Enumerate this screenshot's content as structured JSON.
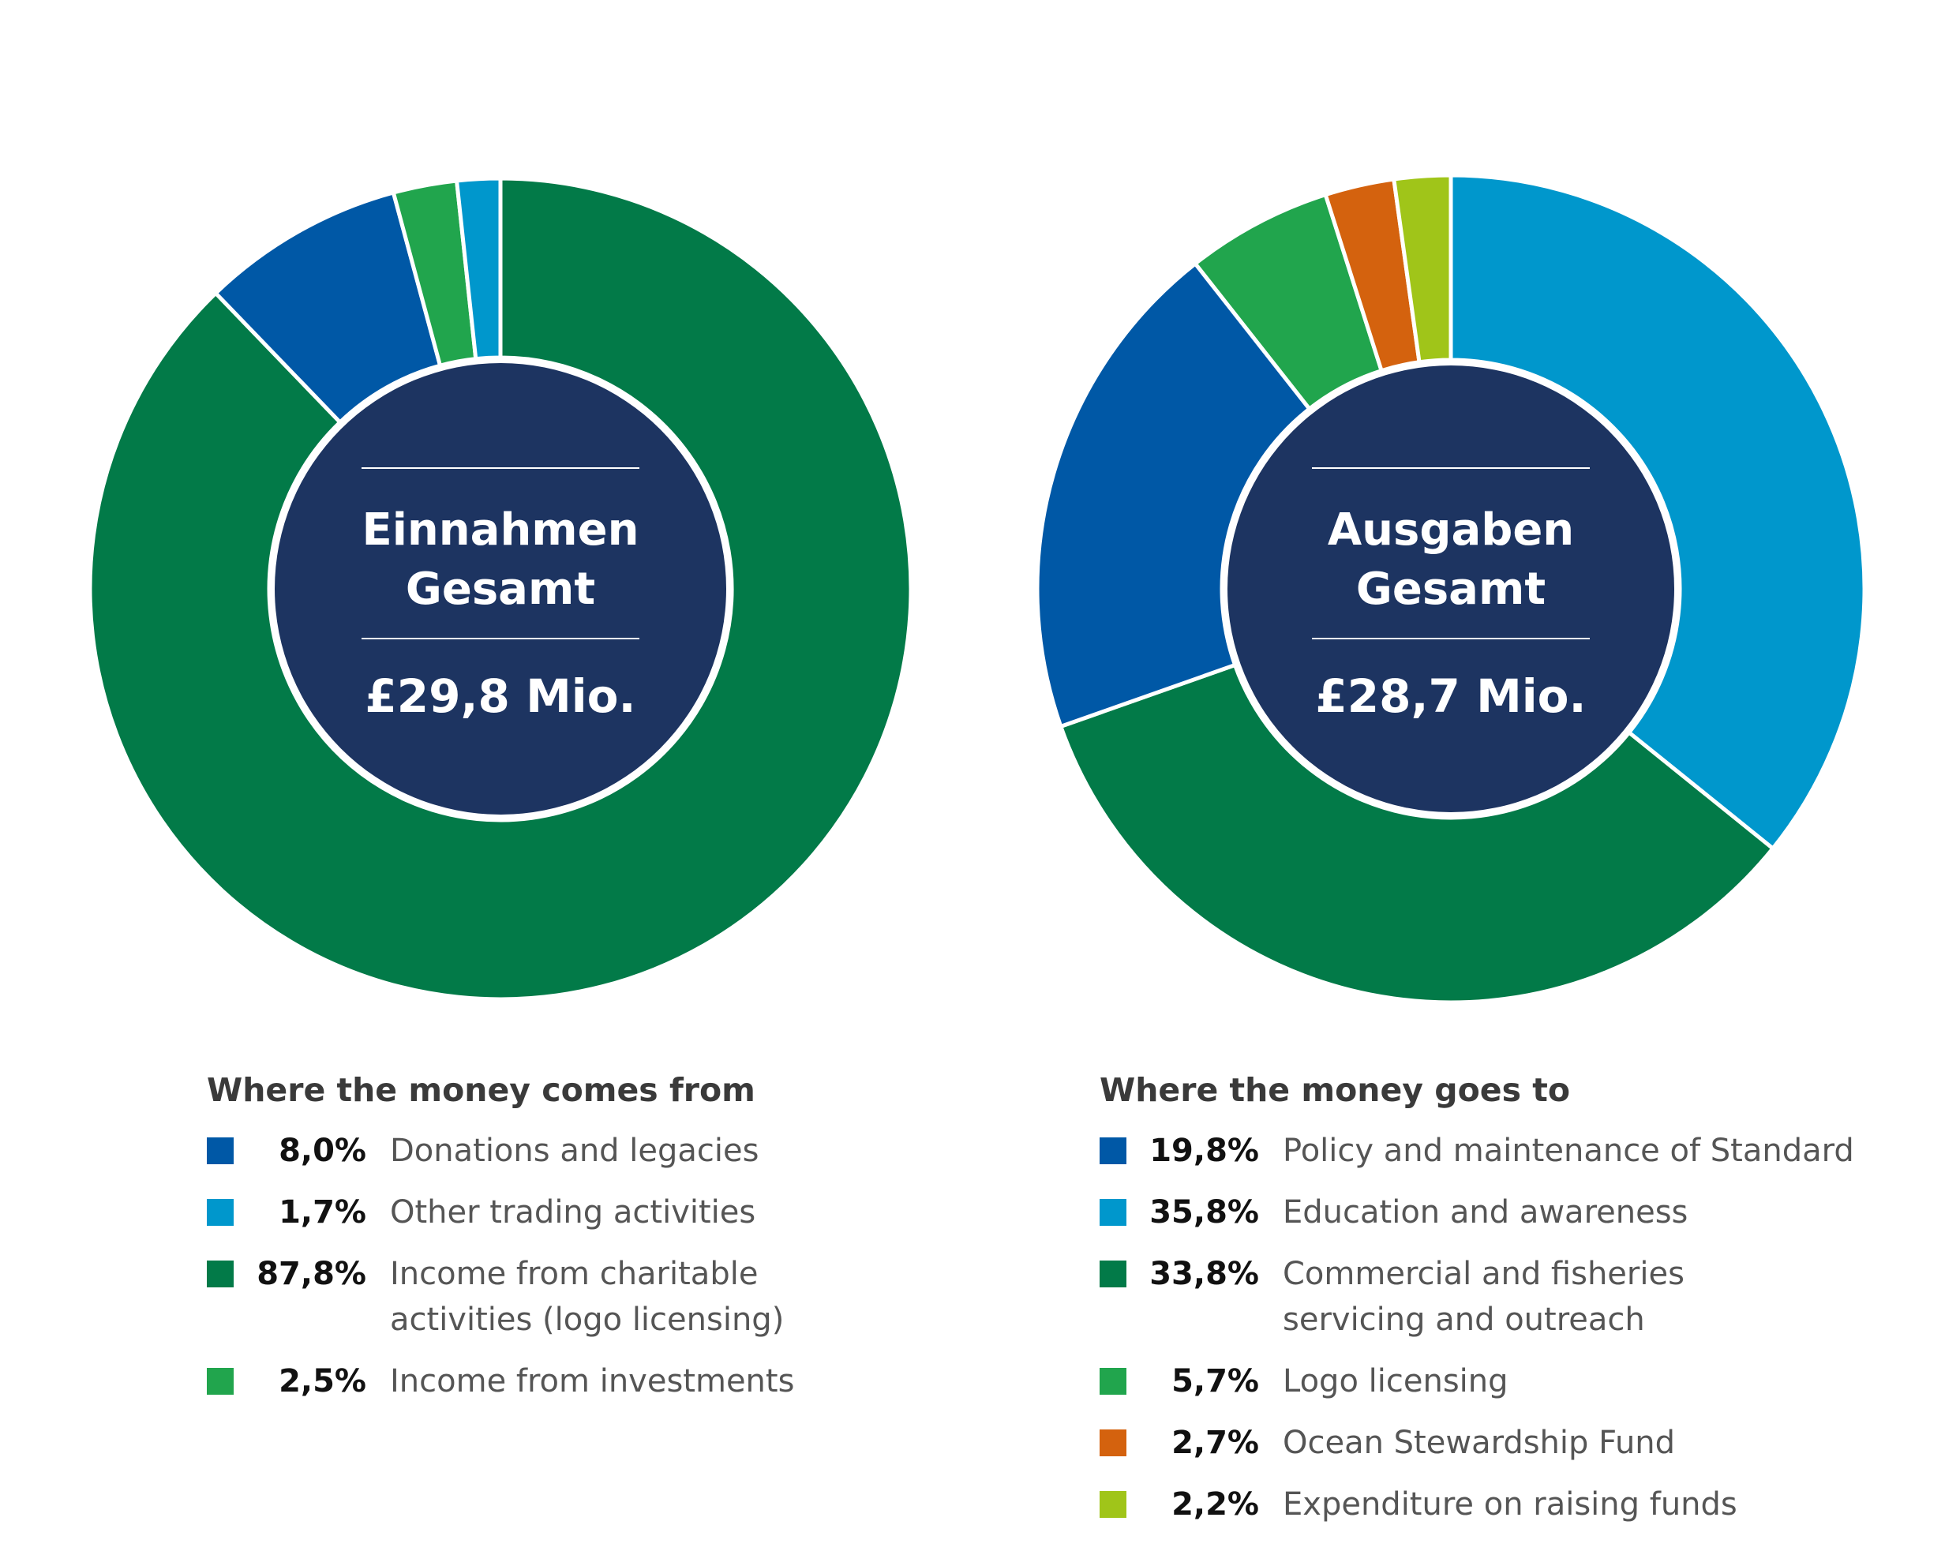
{
  "chart_data": [
    {
      "type": "pie",
      "subtype": "donut",
      "center_title": [
        "Einnahmen",
        "Gesamt"
      ],
      "center_value": "£29,8 Mio.",
      "legend_title": "Where the money comes from",
      "slices": [
        {
          "label": "Income from charitable\nactivities (logo licensing)",
          "value": 87.8,
          "display": "87,8%",
          "color": "#027a48"
        },
        {
          "label": "Donations and legacies",
          "value": 8.0,
          "display": "8,0%",
          "color": "#0058a6"
        },
        {
          "label": "Income from investments",
          "value": 2.5,
          "display": "2,5%",
          "color": "#21a54d"
        },
        {
          "label": "Other trading activities",
          "value": 1.7,
          "display": "1,7%",
          "color": "#0097cc"
        }
      ],
      "legend_order": [
        1,
        3,
        0,
        2
      ]
    },
    {
      "type": "pie",
      "subtype": "donut",
      "center_title": [
        "Ausgaben",
        "Gesamt"
      ],
      "center_value": "£28,7 Mio.",
      "legend_title": "Where the money goes to",
      "slices": [
        {
          "label": "Education and awareness",
          "value": 35.8,
          "display": "35,8%",
          "color": "#0097cc"
        },
        {
          "label": "Commercial and fisheries\nservicing and outreach",
          "value": 33.8,
          "display": "33,8%",
          "color": "#027a48"
        },
        {
          "label": "Policy and maintenance of Standard",
          "value": 19.8,
          "display": "19,8%",
          "color": "#0058a6"
        },
        {
          "label": "Logo licensing",
          "value": 5.7,
          "display": "5,7%",
          "color": "#21a54d"
        },
        {
          "label": "Ocean Stewardship Fund",
          "value": 2.7,
          "display": "2,7%",
          "color": "#d4620e"
        },
        {
          "label": "Expenditure on raising funds",
          "value": 2.2,
          "display": "2,2%",
          "color": "#a0c519"
        }
      ],
      "legend_order": [
        2,
        0,
        1,
        3,
        4,
        5
      ]
    }
  ],
  "colors": {
    "center_fill": "#1d3461",
    "separator": "#ffffff"
  }
}
